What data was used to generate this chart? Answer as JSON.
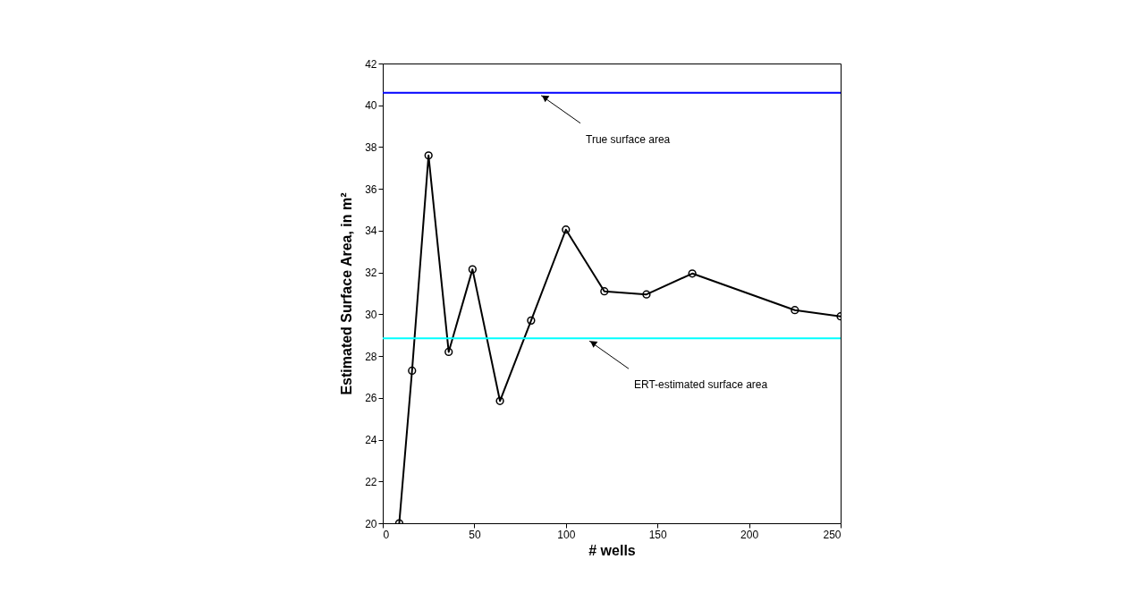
{
  "chart_data": {
    "type": "line",
    "xlabel": "# wells",
    "ylabel": "Estimated Surface Area, in m²",
    "x": [
      9,
      16,
      25,
      36,
      49,
      64,
      81,
      100,
      121,
      144,
      169,
      225,
      250
    ],
    "series": [
      {
        "color": "#000000",
        "values": [
          20,
          27.3,
          37.6,
          28.2,
          32.15,
          25.85,
          29.7,
          34.05,
          31.1,
          30.95,
          31.95,
          30.2,
          29.9
        ]
      }
    ],
    "marker": "circle",
    "xlim": [
      0,
      250
    ],
    "xticks": [
      0,
      50,
      100,
      150,
      200,
      250
    ],
    "ylim": [
      20,
      42
    ],
    "yticks": [
      20,
      22,
      24,
      26,
      28,
      30,
      32,
      34,
      36,
      38,
      40,
      42
    ],
    "ref_lines": [
      {
        "axis": "y",
        "value": 40.6,
        "color": "#0000ff",
        "label": "True surface area"
      },
      {
        "axis": "y",
        "value": 28.85,
        "color": "#00ffff",
        "label": "ERT-estimated surface area"
      }
    ],
    "grid": false
  }
}
